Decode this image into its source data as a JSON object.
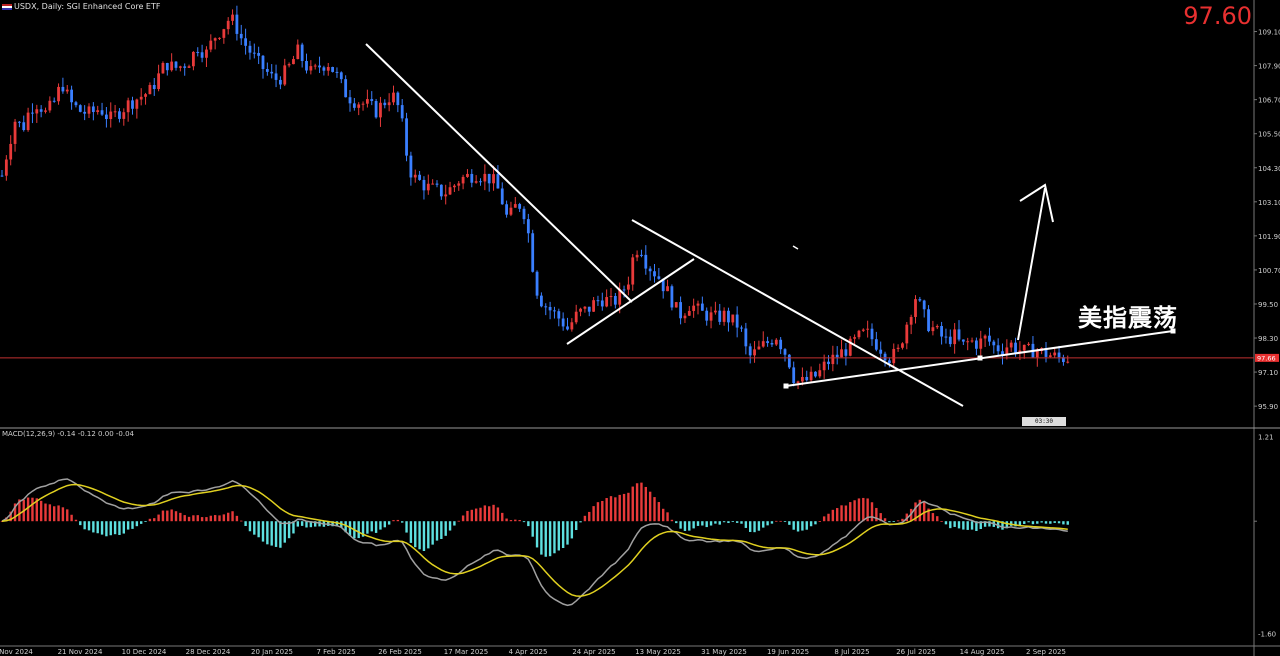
{
  "header": {
    "symbol": "USDX, Daily:",
    "description": "SGI Enhanced Core ETF"
  },
  "current_price": "97.60",
  "price_tag": "97.66",
  "annotation_text": "美指震荡",
  "countdown": "03:30",
  "macd_label": "MACD(12,26,9) -0.14 -0.12 0.00 -0.04",
  "colors": {
    "bull": "#e83a3a",
    "bear": "#3a7fff",
    "hist_up": "#e83a3a",
    "hist_down": "#5ee0e0",
    "macd_line": "#a0a0a0",
    "signal_line": "#e0d020",
    "trend_lines": "#ffffff",
    "price_line": "#c03030"
  },
  "chart_data": [
    {
      "type": "candlestick",
      "title": "USDX, Daily",
      "ylim": [
        95.2,
        110.0
      ],
      "y_ticks": [
        "109.10",
        "107.90",
        "106.70",
        "105.50",
        "104.30",
        "103.10",
        "101.90",
        "100.70",
        "99.50",
        "98.30",
        "97.10",
        "95.90"
      ],
      "x_ticks": [
        "Nov 2024",
        "21 Nov 2024",
        "10 Dec 2024",
        "28 Dec 2024",
        "20 Jan 2025",
        "7 Feb 2025",
        "26 Feb 2025",
        "17 Mar 2025",
        "4 Apr 2025",
        "24 Apr 2025",
        "13 May 2025",
        "31 May 2025",
        "19 Jun 2025",
        "8 Jul 2025",
        "26 Jul 2025",
        "14 Aug 2025",
        "2 Sep 2025"
      ],
      "close_path": [
        [
          0,
          103.7
        ],
        [
          8,
          105.0
        ],
        [
          16,
          106.1
        ],
        [
          22,
          105.6
        ],
        [
          30,
          106.4
        ],
        [
          38,
          106.6
        ],
        [
          46,
          106.2
        ],
        [
          54,
          106.6
        ],
        [
          62,
          107.3
        ],
        [
          70,
          106.6
        ],
        [
          80,
          106.3
        ],
        [
          90,
          106.2
        ],
        [
          100,
          106.4
        ],
        [
          110,
          106.0
        ],
        [
          120,
          106.3
        ],
        [
          130,
          106.6
        ],
        [
          140,
          106.8
        ],
        [
          150,
          107.0
        ],
        [
          158,
          107.5
        ],
        [
          166,
          108.0
        ],
        [
          174,
          107.8
        ],
        [
          182,
          107.9
        ],
        [
          190,
          108.1
        ],
        [
          198,
          108.6
        ],
        [
          206,
          108.3
        ],
        [
          214,
          108.9
        ],
        [
          222,
          109.2
        ],
        [
          230,
          109.6
        ],
        [
          236,
          109.3
        ],
        [
          242,
          108.8
        ],
        [
          250,
          108.4
        ],
        [
          258,
          108.0
        ],
        [
          266,
          107.7
        ],
        [
          274,
          107.4
        ],
        [
          282,
          107.5
        ],
        [
          290,
          107.9
        ],
        [
          298,
          108.4
        ],
        [
          304,
          108.0
        ],
        [
          312,
          107.6
        ],
        [
          320,
          107.9
        ],
        [
          328,
          108.0
        ],
        [
          336,
          107.6
        ],
        [
          344,
          107.0
        ],
        [
          352,
          106.7
        ],
        [
          360,
          106.6
        ],
        [
          368,
          106.5
        ],
        [
          376,
          106.3
        ],
        [
          384,
          106.6
        ],
        [
          392,
          106.9
        ],
        [
          400,
          106.3
        ],
        [
          406,
          104.9
        ],
        [
          412,
          104.0
        ],
        [
          420,
          103.8
        ],
        [
          428,
          103.6
        ],
        [
          436,
          103.5
        ],
        [
          444,
          103.4
        ],
        [
          452,
          103.6
        ],
        [
          460,
          103.9
        ],
        [
          468,
          104.0
        ],
        [
          476,
          104.1
        ],
        [
          484,
          104.0
        ],
        [
          492,
          103.9
        ],
        [
          500,
          103.4
        ],
        [
          508,
          102.4
        ],
        [
          514,
          102.9
        ],
        [
          520,
          103.0
        ],
        [
          526,
          102.6
        ],
        [
          532,
          101.0
        ],
        [
          538,
          99.8
        ],
        [
          544,
          99.5
        ],
        [
          550,
          99.3
        ],
        [
          556,
          99.1
        ],
        [
          562,
          98.9
        ],
        [
          568,
          98.6
        ],
        [
          574,
          99.0
        ],
        [
          580,
          99.2
        ],
        [
          588,
          99.3
        ],
        [
          596,
          99.6
        ],
        [
          604,
          99.7
        ],
        [
          612,
          99.5
        ],
        [
          620,
          99.8
        ],
        [
          628,
          100.3
        ],
        [
          634,
          101.3
        ],
        [
          640,
          101.6
        ],
        [
          646,
          101.0
        ],
        [
          652,
          100.7
        ],
        [
          658,
          100.5
        ],
        [
          664,
          100.1
        ],
        [
          670,
          99.8
        ],
        [
          676,
          99.3
        ],
        [
          682,
          99.1
        ],
        [
          688,
          99.5
        ],
        [
          694,
          99.4
        ],
        [
          700,
          99.2
        ],
        [
          708,
          99.1
        ],
        [
          716,
          99.0
        ],
        [
          724,
          99.1
        ],
        [
          732,
          98.9
        ],
        [
          740,
          98.7
        ],
        [
          748,
          97.6
        ],
        [
          756,
          97.8
        ],
        [
          762,
          98.0
        ],
        [
          770,
          98.2
        ],
        [
          776,
          98.4
        ],
        [
          782,
          98.0
        ],
        [
          788,
          97.6
        ],
        [
          794,
          96.9
        ],
        [
          800,
          96.7
        ],
        [
          806,
          96.8
        ],
        [
          812,
          96.9
        ],
        [
          818,
          97.0
        ],
        [
          826,
          97.4
        ],
        [
          834,
          97.6
        ],
        [
          842,
          97.8
        ],
        [
          850,
          98.0
        ],
        [
          858,
          98.3
        ],
        [
          866,
          98.5
        ],
        [
          874,
          98.2
        ],
        [
          882,
          97.9
        ],
        [
          890,
          97.6
        ],
        [
          898,
          97.8
        ],
        [
          904,
          98.5
        ],
        [
          910,
          99.2
        ],
        [
          916,
          99.8
        ],
        [
          922,
          99.2
        ],
        [
          928,
          98.8
        ],
        [
          934,
          98.6
        ],
        [
          940,
          98.4
        ],
        [
          946,
          98.2
        ],
        [
          954,
          98.4
        ],
        [
          962,
          98.0
        ],
        [
          970,
          98.2
        ],
        [
          978,
          98.1
        ],
        [
          986,
          98.3
        ],
        [
          994,
          98.0
        ],
        [
          1002,
          97.9
        ],
        [
          1010,
          98.1
        ],
        [
          1018,
          97.9
        ],
        [
          1026,
          97.8
        ],
        [
          1034,
          97.9
        ],
        [
          1042,
          97.8
        ],
        [
          1050,
          97.7
        ],
        [
          1058,
          97.6
        ],
        [
          1066,
          97.6
        ]
      ],
      "current_value": 97.6
    },
    {
      "type": "macd",
      "title": "MACD(12,26,9)",
      "ylim": [
        -1.75,
        1.3
      ],
      "y_ticks": [
        "1.21",
        "-1.60"
      ],
      "macd_value": -0.14,
      "signal_value": -0.12
    }
  ]
}
